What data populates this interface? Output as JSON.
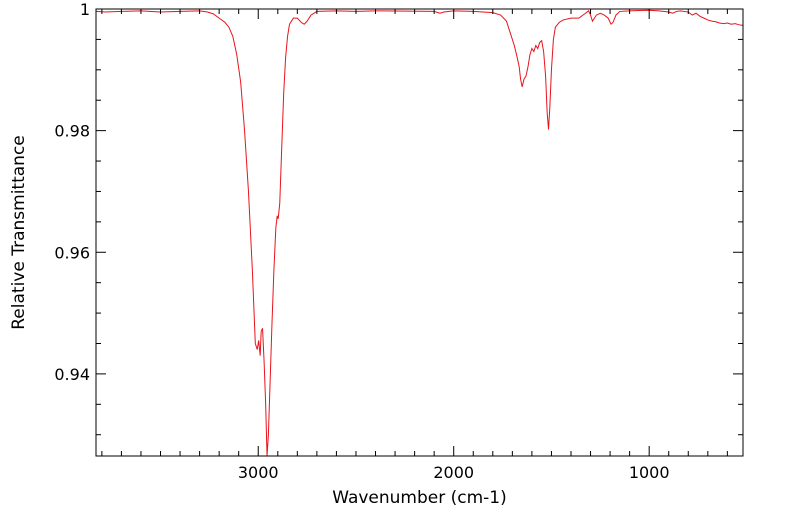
{
  "chart_data": {
    "type": "line",
    "title": "",
    "xlabel": "Wavenumber (cm-1)",
    "ylabel": "Relative Transmittance",
    "xlim": [
      3830,
      520
    ],
    "ylim": [
      0.9265,
      1.0
    ],
    "x_reversed": true,
    "grid": false,
    "x_ticks": [
      3000,
      2000,
      1000
    ],
    "x_tick_labels": [
      "3000",
      "2000",
      "1000"
    ],
    "y_ticks": [
      0.94,
      0.96,
      0.98,
      1.0
    ],
    "y_tick_labels": [
      "0.94",
      "0.96",
      "0.98",
      "1"
    ],
    "series": [
      {
        "color": "#e8141c",
        "points": [
          [
            3830,
            0.9996
          ],
          [
            3780,
            0.9995
          ],
          [
            3700,
            0.9996
          ],
          [
            3600,
            0.9997
          ],
          [
            3500,
            0.9995
          ],
          [
            3400,
            0.9996
          ],
          [
            3300,
            0.9997
          ],
          [
            3260,
            0.9995
          ],
          [
            3230,
            0.9992
          ],
          [
            3200,
            0.9985
          ],
          [
            3170,
            0.9978
          ],
          [
            3150,
            0.997
          ],
          [
            3130,
            0.9955
          ],
          [
            3110,
            0.9925
          ],
          [
            3090,
            0.988
          ],
          [
            3070,
            0.98
          ],
          [
            3050,
            0.97
          ],
          [
            3030,
            0.957
          ],
          [
            3015,
            0.945
          ],
          [
            3005,
            0.944
          ],
          [
            2998,
            0.9455
          ],
          [
            2990,
            0.943
          ],
          [
            2985,
            0.947
          ],
          [
            2978,
            0.9475
          ],
          [
            2970,
            0.942
          ],
          [
            2962,
            0.935
          ],
          [
            2955,
            0.9265
          ],
          [
            2948,
            0.93
          ],
          [
            2940,
            0.938
          ],
          [
            2930,
            0.948
          ],
          [
            2920,
            0.957
          ],
          [
            2910,
            0.964
          ],
          [
            2903,
            0.966
          ],
          [
            2898,
            0.9655
          ],
          [
            2890,
            0.968
          ],
          [
            2880,
            0.977
          ],
          [
            2870,
            0.986
          ],
          [
            2860,
            0.992
          ],
          [
            2850,
            0.9955
          ],
          [
            2840,
            0.9975
          ],
          [
            2820,
            0.9985
          ],
          [
            2800,
            0.9985
          ],
          [
            2780,
            0.9978
          ],
          [
            2765,
            0.9975
          ],
          [
            2750,
            0.998
          ],
          [
            2730,
            0.999
          ],
          [
            2700,
            0.9996
          ],
          [
            2600,
            0.9997
          ],
          [
            2500,
            0.9996
          ],
          [
            2400,
            0.9997
          ],
          [
            2100,
            0.9996
          ],
          [
            2070,
            0.9993
          ],
          [
            2050,
            0.9995
          ],
          [
            2000,
            0.9997
          ],
          [
            1900,
            0.9996
          ],
          [
            1800,
            0.9994
          ],
          [
            1760,
            0.999
          ],
          [
            1730,
            0.998
          ],
          [
            1710,
            0.996
          ],
          [
            1690,
            0.994
          ],
          [
            1675,
            0.992
          ],
          [
            1665,
            0.9905
          ],
          [
            1658,
            0.9885
          ],
          [
            1650,
            0.9872
          ],
          [
            1640,
            0.9885
          ],
          [
            1630,
            0.989
          ],
          [
            1620,
            0.9905
          ],
          [
            1610,
            0.9925
          ],
          [
            1600,
            0.9935
          ],
          [
            1590,
            0.993
          ],
          [
            1580,
            0.994
          ],
          [
            1570,
            0.9935
          ],
          [
            1560,
            0.9945
          ],
          [
            1550,
            0.9948
          ],
          [
            1540,
            0.993
          ],
          [
            1530,
            0.989
          ],
          [
            1522,
            0.983
          ],
          [
            1515,
            0.9802
          ],
          [
            1508,
            0.984
          ],
          [
            1500,
            0.99
          ],
          [
            1490,
            0.995
          ],
          [
            1480,
            0.997
          ],
          [
            1460,
            0.9978
          ],
          [
            1440,
            0.9982
          ],
          [
            1400,
            0.9985
          ],
          [
            1360,
            0.9985
          ],
          [
            1330,
            0.9992
          ],
          [
            1310,
            0.9997
          ],
          [
            1300,
            0.999
          ],
          [
            1290,
            0.998
          ],
          [
            1280,
            0.9985
          ],
          [
            1270,
            0.999
          ],
          [
            1250,
            0.9993
          ],
          [
            1230,
            0.999
          ],
          [
            1210,
            0.9985
          ],
          [
            1195,
            0.9975
          ],
          [
            1185,
            0.9978
          ],
          [
            1170,
            0.999
          ],
          [
            1150,
            0.9996
          ],
          [
            1100,
            0.9997
          ],
          [
            1000,
            0.9998
          ],
          [
            950,
            0.9997
          ],
          [
            900,
            0.9995
          ],
          [
            880,
            0.9993
          ],
          [
            860,
            0.9996
          ],
          [
            840,
            0.9997
          ],
          [
            800,
            0.9995
          ],
          [
            780,
            0.999
          ],
          [
            760,
            0.9993
          ],
          [
            740,
            0.9988
          ],
          [
            720,
            0.9985
          ],
          [
            700,
            0.9982
          ],
          [
            680,
            0.998
          ],
          [
            660,
            0.9979
          ],
          [
            640,
            0.9977
          ],
          [
            620,
            0.9976
          ],
          [
            600,
            0.9977
          ],
          [
            580,
            0.9975
          ],
          [
            560,
            0.9976
          ],
          [
            540,
            0.9974
          ],
          [
            520,
            0.9973
          ]
        ]
      }
    ]
  }
}
